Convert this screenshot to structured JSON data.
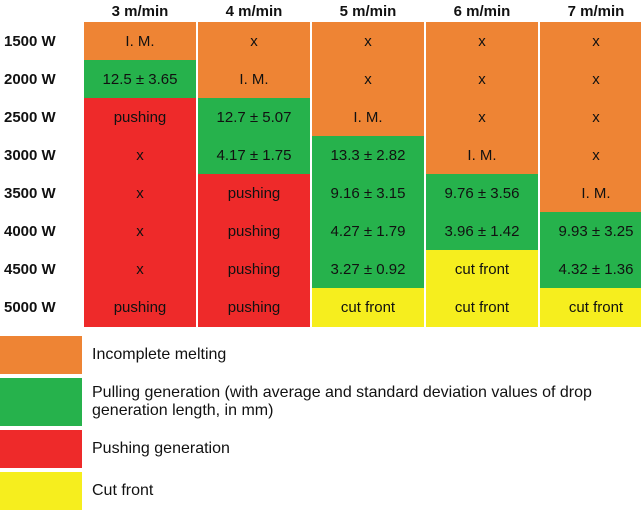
{
  "colors": {
    "im": "#ee8434",
    "pull": "#26b24c",
    "push": "#ee2a2a",
    "cut": "#f6ee1e"
  },
  "columns": [
    "3 m/min",
    "4 m/min",
    "5 m/min",
    "6 m/min",
    "7 m/min"
  ],
  "rows": [
    {
      "power": "1500 W",
      "cells": [
        {
          "text": "I. M.",
          "state": "im"
        },
        {
          "text": "x",
          "state": "im"
        },
        {
          "text": "x",
          "state": "im"
        },
        {
          "text": "x",
          "state": "im"
        },
        {
          "text": "x",
          "state": "im"
        }
      ]
    },
    {
      "power": "2000 W",
      "cells": [
        {
          "text": "12.5 ± 3.65",
          "state": "pull"
        },
        {
          "text": "I. M.",
          "state": "im"
        },
        {
          "text": "x",
          "state": "im"
        },
        {
          "text": "x",
          "state": "im"
        },
        {
          "text": "x",
          "state": "im"
        }
      ]
    },
    {
      "power": "2500 W",
      "cells": [
        {
          "text": "pushing",
          "state": "push"
        },
        {
          "text": "12.7 ± 5.07",
          "state": "pull"
        },
        {
          "text": "I. M.",
          "state": "im"
        },
        {
          "text": "x",
          "state": "im"
        },
        {
          "text": "x",
          "state": "im"
        }
      ]
    },
    {
      "power": "3000 W",
      "cells": [
        {
          "text": "x",
          "state": "push"
        },
        {
          "text": "4.17 ± 1.75",
          "state": "pull"
        },
        {
          "text": "13.3 ± 2.82",
          "state": "pull"
        },
        {
          "text": "I. M.",
          "state": "im"
        },
        {
          "text": "x",
          "state": "im"
        }
      ]
    },
    {
      "power": "3500 W",
      "cells": [
        {
          "text": "x",
          "state": "push"
        },
        {
          "text": "pushing",
          "state": "push"
        },
        {
          "text": "9.16 ± 3.15",
          "state": "pull"
        },
        {
          "text": "9.76 ± 3.56",
          "state": "pull"
        },
        {
          "text": "I. M.",
          "state": "im"
        }
      ]
    },
    {
      "power": "4000 W",
      "cells": [
        {
          "text": "x",
          "state": "push"
        },
        {
          "text": "pushing",
          "state": "push"
        },
        {
          "text": "4.27 ± 1.79",
          "state": "pull"
        },
        {
          "text": "3.96 ± 1.42",
          "state": "pull"
        },
        {
          "text": "9.93 ± 3.25",
          "state": "pull"
        }
      ]
    },
    {
      "power": "4500 W",
      "cells": [
        {
          "text": "x",
          "state": "push"
        },
        {
          "text": "pushing",
          "state": "push"
        },
        {
          "text": "3.27 ± 0.92",
          "state": "pull"
        },
        {
          "text": "cut front",
          "state": "cut"
        },
        {
          "text": "4.32 ± 1.36",
          "state": "pull"
        }
      ]
    },
    {
      "power": "5000 W",
      "cells": [
        {
          "text": "pushing",
          "state": "push"
        },
        {
          "text": "pushing",
          "state": "push"
        },
        {
          "text": "cut front",
          "state": "cut"
        },
        {
          "text": "cut front",
          "state": "cut"
        },
        {
          "text": "cut front",
          "state": "cut"
        }
      ]
    }
  ],
  "legend": [
    {
      "state": "im",
      "label": "Incomplete melting"
    },
    {
      "state": "pull",
      "label": "Pulling generation (with average and standard deviation values of drop generation length, in mm)"
    },
    {
      "state": "push",
      "label": "Pushing generation"
    },
    {
      "state": "cut",
      "label": "Cut front"
    }
  ]
}
